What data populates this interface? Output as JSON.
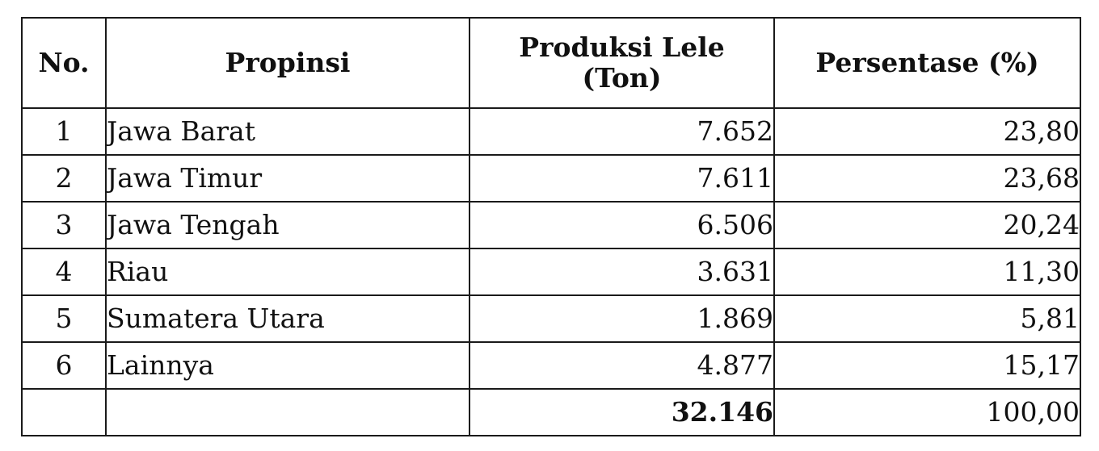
{
  "table": {
    "headers": {
      "no": "No.",
      "province": "Propinsi",
      "production_line1": "Produksi Lele",
      "production_line2": "(Ton)",
      "percentage": "Persentase (%)"
    },
    "rows": [
      {
        "no": "1",
        "province": "Jawa Barat",
        "production": "7.652",
        "percentage": "23,80"
      },
      {
        "no": "2",
        "province": "Jawa Timur",
        "production": "7.611",
        "percentage": "23,68"
      },
      {
        "no": "3",
        "province": "Jawa Tengah",
        "production": "6.506",
        "percentage": "20,24"
      },
      {
        "no": "4",
        "province": "Riau",
        "production": "3.631",
        "percentage": "11,30"
      },
      {
        "no": "5",
        "province": "Sumatera Utara",
        "production": "1.869",
        "percentage": "5,81"
      },
      {
        "no": "6",
        "province": "Lainnya",
        "production": "4.877",
        "percentage": "15,17"
      }
    ],
    "total": {
      "no": "",
      "province": "",
      "production": "32.146",
      "percentage": "100,00"
    }
  }
}
